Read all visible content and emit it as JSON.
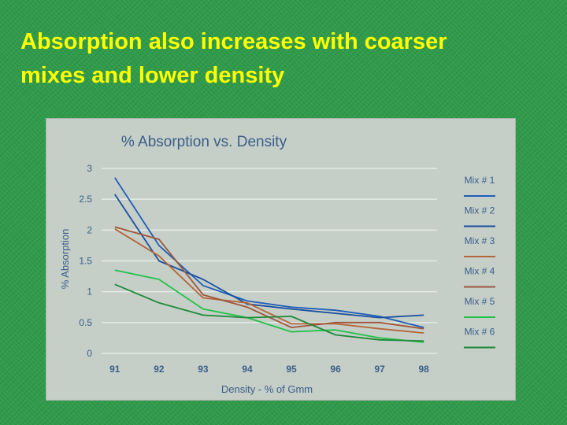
{
  "slide": {
    "title_line1": "Absorption also increases with coarser",
    "title_line2": "mixes and lower density"
  },
  "colors": {
    "background": "#2f9a4a",
    "title": "#ffff00",
    "panel": "#c5cec7",
    "grid": "#e4ebe6",
    "text": "#3a5f8a"
  },
  "chart_data": {
    "type": "line",
    "title": "% Absorption vs. Density",
    "xlabel": "Density - % of Gmm",
    "ylabel": "% Absorption",
    "x": [
      91,
      92,
      93,
      94,
      95,
      96,
      97,
      98
    ],
    "x_tick_labels": [
      "91",
      "92",
      "93",
      "94",
      "95",
      "96",
      "97",
      "98"
    ],
    "y_ticks": [
      0,
      0.5,
      1,
      1.5,
      2,
      2.5,
      3
    ],
    "y_tick_labels": [
      "0",
      "0.5",
      "1",
      "1.5",
      "2",
      "2.5",
      "3"
    ],
    "ylim": [
      0,
      3
    ],
    "xlim": [
      90.7,
      98.3
    ],
    "grid": "horizontal",
    "legend_position": "right",
    "series": [
      {
        "name": "Mix # 1",
        "color": "#1f5fb8",
        "values": [
          2.85,
          1.75,
          1.1,
          0.85,
          0.75,
          0.7,
          0.6,
          0.42
        ]
      },
      {
        "name": "Mix # 2",
        "color": "#1a4fa0",
        "values": [
          2.58,
          1.5,
          1.2,
          0.8,
          0.72,
          0.65,
          0.58,
          0.62
        ]
      },
      {
        "name": "Mix # 3",
        "color": "#b5653a",
        "values": [
          2.02,
          1.58,
          0.9,
          0.82,
          0.48,
          0.48,
          0.4,
          0.33
        ]
      },
      {
        "name": "Mix # 4",
        "color": "#a0553c",
        "values": [
          2.05,
          1.85,
          0.95,
          0.75,
          0.42,
          0.5,
          0.5,
          0.4
        ]
      },
      {
        "name": "Mix # 5",
        "color": "#22c248",
        "values": [
          1.35,
          1.2,
          0.72,
          0.58,
          0.35,
          0.38,
          0.25,
          0.18
        ]
      },
      {
        "name": "Mix # 6",
        "color": "#1f8a3a",
        "values": [
          1.12,
          0.82,
          0.62,
          0.58,
          0.6,
          0.3,
          0.22,
          0.2
        ]
      }
    ]
  }
}
